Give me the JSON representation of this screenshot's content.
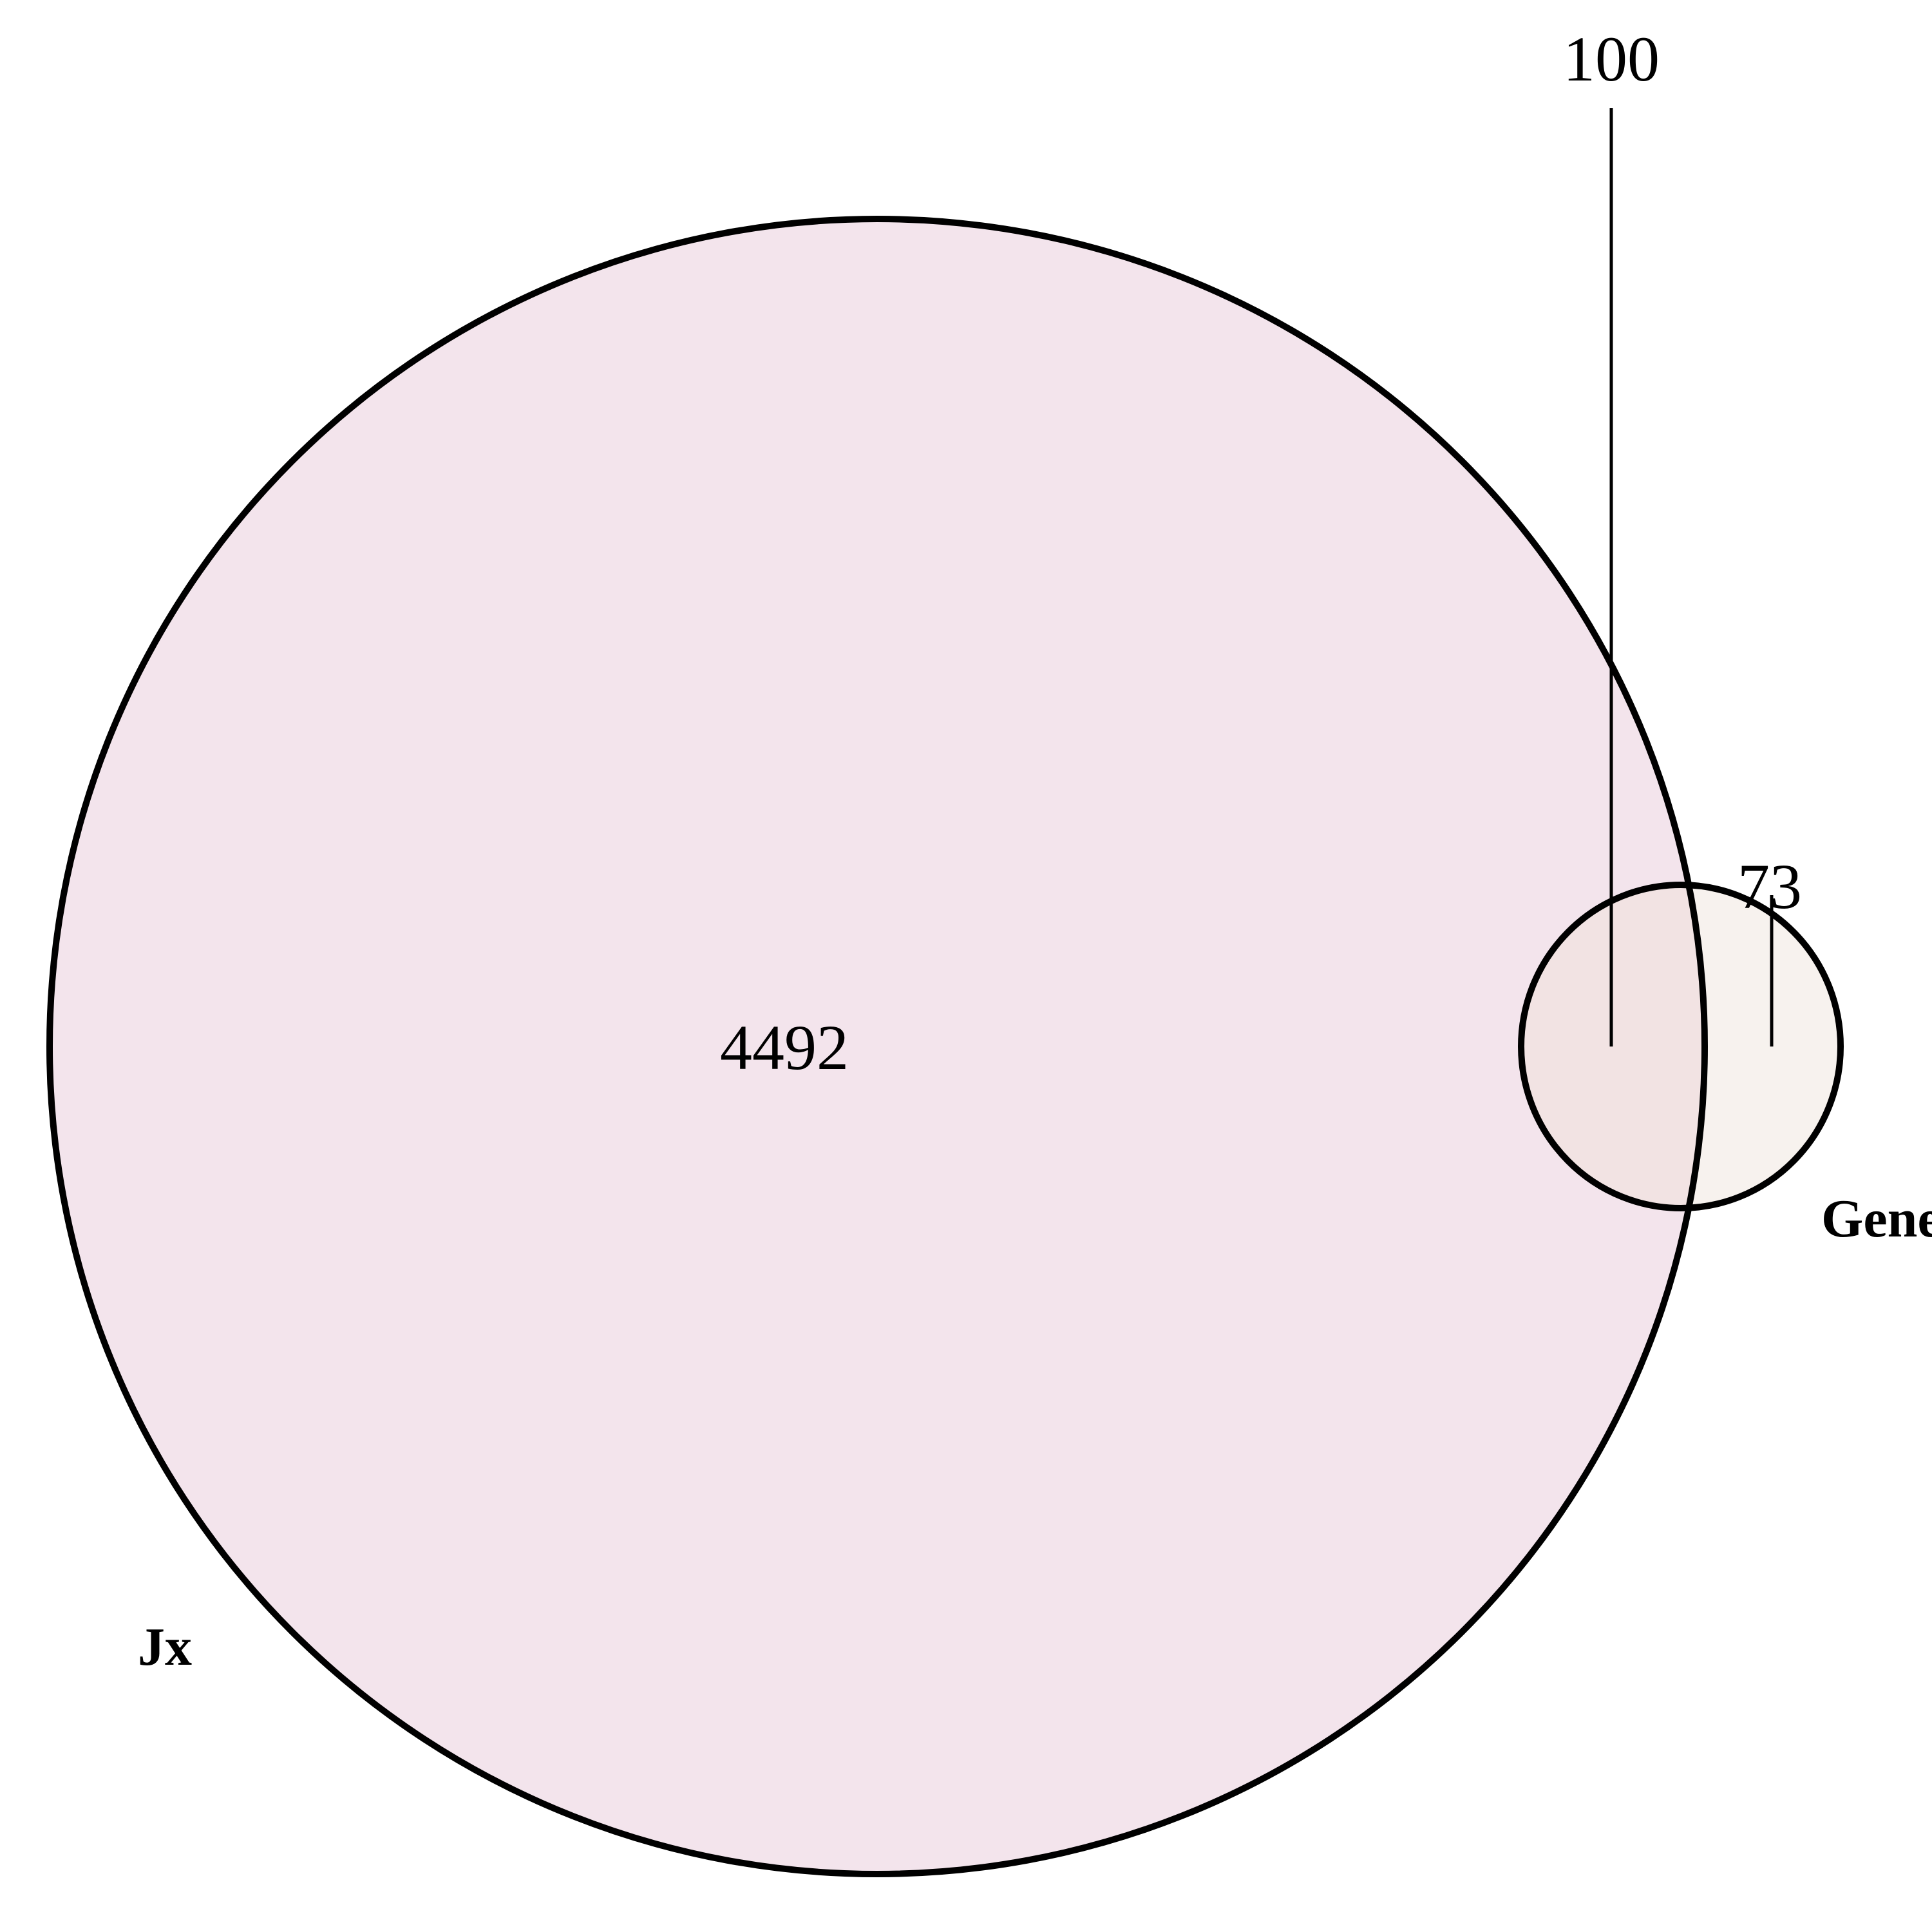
{
  "diagram": {
    "type": "venn",
    "sets": [
      {
        "id": "jx",
        "label": "Jx",
        "fill": "#f3e4ec",
        "outline": "#000000"
      },
      {
        "id": "gene",
        "label": "Gene",
        "fill": "#f7f2ee",
        "outline": "#000000"
      }
    ],
    "overlap_fill": "#f2e3e3",
    "regions": {
      "jx_only": "4492",
      "intersection": "100",
      "gene_only": "73"
    }
  }
}
